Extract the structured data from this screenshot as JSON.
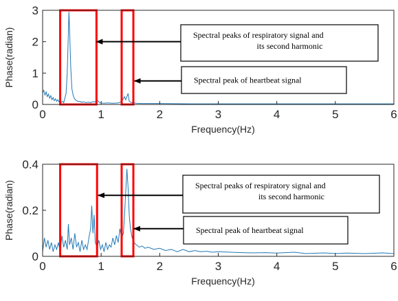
{
  "chart_data": [
    {
      "type": "line",
      "title": "",
      "xlabel": "Frequency(Hz)",
      "ylabel": "Phase(radian)",
      "xlim": [
        0,
        6
      ],
      "ylim": [
        0,
        3
      ],
      "xticks": [
        "0",
        "1",
        "2",
        "3",
        "4",
        "5",
        "6"
      ],
      "yticks": [
        "0",
        "1",
        "2",
        "3"
      ],
      "grid": false,
      "line_color": "#1f77b4",
      "highlight_color": "#ff0000",
      "series": [
        {
          "values": [
            [
              0,
              0.38
            ],
            [
              0.02,
              0.45
            ],
            [
              0.04,
              0.3
            ],
            [
              0.06,
              0.4
            ],
            [
              0.08,
              0.25
            ],
            [
              0.1,
              0.33
            ],
            [
              0.12,
              0.2
            ],
            [
              0.14,
              0.28
            ],
            [
              0.16,
              0.15
            ],
            [
              0.18,
              0.22
            ],
            [
              0.2,
              0.12
            ],
            [
              0.22,
              0.18
            ],
            [
              0.24,
              0.1
            ],
            [
              0.26,
              0.15
            ],
            [
              0.28,
              0.08
            ],
            [
              0.3,
              0.12
            ],
            [
              0.32,
              0.07
            ],
            [
              0.34,
              0.1
            ],
            [
              0.36,
              0.06
            ],
            [
              0.38,
              0.2
            ],
            [
              0.4,
              0.35
            ],
            [
              0.42,
              1.0
            ],
            [
              0.44,
              2.3
            ],
            [
              0.45,
              2.95
            ],
            [
              0.46,
              2.4
            ],
            [
              0.48,
              1.2
            ],
            [
              0.5,
              0.5
            ],
            [
              0.52,
              0.3
            ],
            [
              0.54,
              0.2
            ],
            [
              0.56,
              0.15
            ],
            [
              0.58,
              0.12
            ],
            [
              0.6,
              0.1
            ],
            [
              0.62,
              0.09
            ],
            [
              0.64,
              0.1
            ],
            [
              0.66,
              0.07
            ],
            [
              0.7,
              0.08
            ],
            [
              0.74,
              0.06
            ],
            [
              0.78,
              0.07
            ],
            [
              0.82,
              0.06
            ],
            [
              0.86,
              0.09
            ],
            [
              0.9,
              0.08
            ],
            [
              0.94,
              0.12
            ],
            [
              0.98,
              0.05
            ],
            [
              1.05,
              0.04
            ],
            [
              1.1,
              0.05
            ],
            [
              1.2,
              0.04
            ],
            [
              1.3,
              0.05
            ],
            [
              1.35,
              0.1
            ],
            [
              1.4,
              0.25
            ],
            [
              1.42,
              0.15
            ],
            [
              1.46,
              0.35
            ],
            [
              1.48,
              0.1
            ],
            [
              1.52,
              0.06
            ],
            [
              1.6,
              0.04
            ],
            [
              1.7,
              0.03
            ],
            [
              1.8,
              0.03
            ],
            [
              2.0,
              0.03
            ],
            [
              2.5,
              0.02
            ],
            [
              3.0,
              0.02
            ],
            [
              3.5,
              0.02
            ],
            [
              4.0,
              0.02
            ],
            [
              4.5,
              0.02
            ],
            [
              5.0,
              0.02
            ],
            [
              5.5,
              0.02
            ],
            [
              6.0,
              0.02
            ]
          ]
        }
      ],
      "highlights": [
        {
          "x": [
            0.3,
            0.92
          ],
          "y": [
            0,
            3
          ]
        },
        {
          "x": [
            1.35,
            1.55
          ],
          "y": [
            0,
            3
          ]
        }
      ],
      "annotations": [
        {
          "lines": [
            "Spectral peaks of respiratory signal and",
            "its second harmonic"
          ],
          "target": [
            0.92,
            2.0
          ]
        },
        {
          "lines": [
            "Spectral peak of heartbeat signal"
          ],
          "target": [
            1.57,
            0.75
          ]
        }
      ]
    },
    {
      "type": "line",
      "title": "",
      "xlabel": "Frequency(Hz)",
      "ylabel": "Phase(radian)",
      "xlim": [
        0,
        6
      ],
      "ylim": [
        0,
        0.4
      ],
      "xticks": [
        "0",
        "1",
        "2",
        "3",
        "4",
        "5",
        "6"
      ],
      "yticks": [
        "0",
        "0.2",
        "0.4"
      ],
      "grid": false,
      "line_color": "#1f77b4",
      "highlight_color": "#ff0000",
      "series": [
        {
          "values": [
            [
              0,
              0.02
            ],
            [
              0.03,
              0.08
            ],
            [
              0.06,
              0.04
            ],
            [
              0.09,
              0.07
            ],
            [
              0.12,
              0.03
            ],
            [
              0.15,
              0.06
            ],
            [
              0.18,
              0.02
            ],
            [
              0.21,
              0.05
            ],
            [
              0.24,
              0.03
            ],
            [
              0.27,
              0.06
            ],
            [
              0.3,
              0.02
            ],
            [
              0.33,
              0.09
            ],
            [
              0.36,
              0.04
            ],
            [
              0.39,
              0.07
            ],
            [
              0.42,
              0.03
            ],
            [
              0.44,
              0.14
            ],
            [
              0.46,
              0.05
            ],
            [
              0.49,
              0.08
            ],
            [
              0.52,
              0.03
            ],
            [
              0.55,
              0.1
            ],
            [
              0.58,
              0.04
            ],
            [
              0.61,
              0.06
            ],
            [
              0.64,
              0.02
            ],
            [
              0.67,
              0.07
            ],
            [
              0.7,
              0.03
            ],
            [
              0.73,
              0.05
            ],
            [
              0.76,
              0.03
            ],
            [
              0.79,
              0.08
            ],
            [
              0.82,
              0.12
            ],
            [
              0.84,
              0.22
            ],
            [
              0.86,
              0.1
            ],
            [
              0.88,
              0.18
            ],
            [
              0.9,
              0.06
            ],
            [
              0.93,
              0.04
            ],
            [
              0.96,
              0.07
            ],
            [
              0.99,
              0.03
            ],
            [
              1.02,
              0.05
            ],
            [
              1.05,
              0.02
            ],
            [
              1.08,
              0.06
            ],
            [
              1.11,
              0.03
            ],
            [
              1.14,
              0.05
            ],
            [
              1.17,
              0.04
            ],
            [
              1.2,
              0.08
            ],
            [
              1.23,
              0.05
            ],
            [
              1.26,
              0.09
            ],
            [
              1.29,
              0.06
            ],
            [
              1.32,
              0.12
            ],
            [
              1.35,
              0.08
            ],
            [
              1.38,
              0.1
            ],
            [
              1.4,
              0.18
            ],
            [
              1.42,
              0.28
            ],
            [
              1.44,
              0.38
            ],
            [
              1.46,
              0.3
            ],
            [
              1.48,
              0.18
            ],
            [
              1.5,
              0.12
            ],
            [
              1.53,
              0.08
            ],
            [
              1.56,
              0.06
            ],
            [
              1.6,
              0.05
            ],
            [
              1.65,
              0.04
            ],
            [
              1.7,
              0.045
            ],
            [
              1.75,
              0.035
            ],
            [
              1.8,
              0.04
            ],
            [
              1.9,
              0.03
            ],
            [
              2.0,
              0.035
            ],
            [
              2.1,
              0.025
            ],
            [
              2.2,
              0.03
            ],
            [
              2.3,
              0.02
            ],
            [
              2.4,
              0.03
            ],
            [
              2.5,
              0.02
            ],
            [
              2.6,
              0.025
            ],
            [
              2.7,
              0.02
            ],
            [
              2.8,
              0.022
            ],
            [
              2.9,
              0.018
            ],
            [
              3.0,
              0.02
            ],
            [
              3.2,
              0.018
            ],
            [
              3.4,
              0.016
            ],
            [
              3.6,
              0.015
            ],
            [
              3.8,
              0.016
            ],
            [
              4.0,
              0.014
            ],
            [
              4.3,
              0.018
            ],
            [
              4.5,
              0.012
            ],
            [
              4.8,
              0.015
            ],
            [
              5.0,
              0.012
            ],
            [
              5.2,
              0.014
            ],
            [
              5.5,
              0.012
            ],
            [
              5.8,
              0.015
            ],
            [
              6.0,
              0.012
            ]
          ]
        }
      ],
      "highlights": [
        {
          "x": [
            0.3,
            0.93
          ],
          "y": [
            0,
            0.4
          ]
        },
        {
          "x": [
            1.35,
            1.55
          ],
          "y": [
            0,
            0.4
          ]
        }
      ],
      "annotations": [
        {
          "lines": [
            "Spectral peaks of respiratory signal and",
            "its second harmonic"
          ],
          "target": [
            0.95,
            0.265
          ]
        },
        {
          "lines": [
            "Spectral peak of heartbeat signal"
          ],
          "target": [
            1.56,
            0.12
          ]
        }
      ]
    }
  ]
}
